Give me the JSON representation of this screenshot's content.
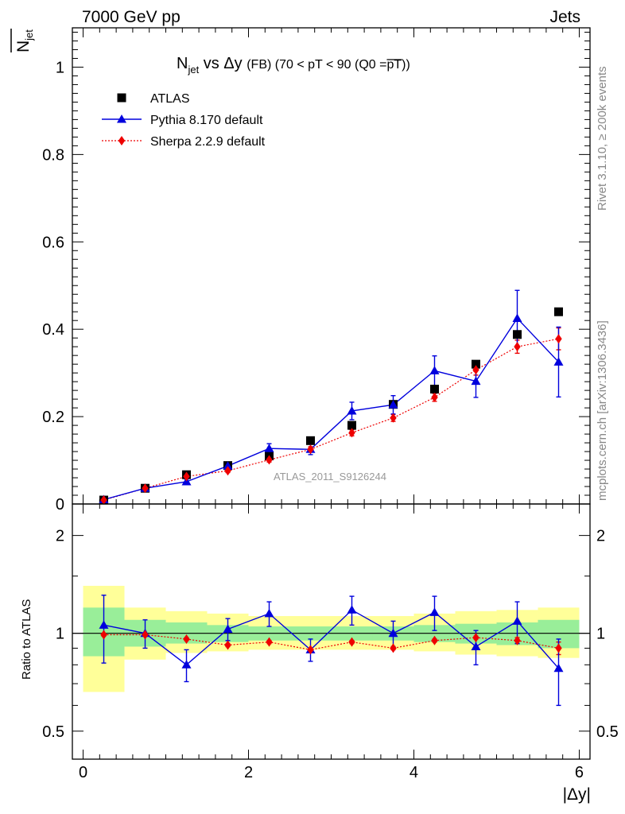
{
  "header": {
    "left": "7000 GeV pp",
    "right": "Jets"
  },
  "title": {
    "prefix": "N",
    "prefix_sub": "jet",
    "middle": " vs Δy ",
    "small": "(FB) (70 < pT <  90 (Q0 =",
    "pt_bar": "pT",
    "close": "))"
  },
  "side_text": {
    "rivet": "Rivet 3.1.10, ≥ 200k events",
    "mcplots": "mcplots.cern.ch [arXiv:1306.3436]"
  },
  "watermark": "ATLAS_2011_S9126244",
  "ylabel_top": {
    "main": "N",
    "sub": "jet"
  },
  "ylabel_bottom": "Ratio to ATLAS",
  "xlabel": "|Δy|",
  "legend": [
    {
      "name": "ATLAS",
      "color": "#000000"
    },
    {
      "name": "Pythia 8.170 default",
      "color": "#0000dd"
    },
    {
      "name": "Sherpa 2.2.9 default",
      "color": "#ee0000"
    }
  ],
  "chart_data": {
    "type": "scatter",
    "x_bins": [
      [
        0,
        0.5
      ],
      [
        0.5,
        1.0
      ],
      [
        1.0,
        1.5
      ],
      [
        1.5,
        2.0
      ],
      [
        2.0,
        2.5
      ],
      [
        2.5,
        3.0
      ],
      [
        3.0,
        3.5
      ],
      [
        3.5,
        4.0
      ],
      [
        4.0,
        4.5
      ],
      [
        4.5,
        5.0
      ],
      [
        5.0,
        5.5
      ],
      [
        5.5,
        6.0
      ]
    ],
    "x": [
      0.25,
      0.75,
      1.25,
      1.75,
      2.25,
      2.75,
      3.25,
      3.75,
      4.25,
      4.75,
      5.25,
      5.75
    ],
    "xlim": [
      -0.13,
      6.13
    ],
    "xticks": [
      0,
      2,
      4,
      6
    ],
    "main": {
      "ylim": [
        0,
        1.09
      ],
      "yticks": [
        0,
        0.2,
        0.4,
        0.6,
        0.8,
        1
      ],
      "ytick_labels": [
        "0",
        "0.2",
        "0.4",
        "0.6",
        "0.8",
        "1"
      ],
      "series": [
        {
          "name": "ATLAS",
          "values": [
            0.009,
            0.036,
            0.067,
            0.088,
            0.11,
            0.145,
            0.18,
            0.228,
            0.263,
            0.32,
            0.388,
            0.44
          ]
        },
        {
          "name": "Pythia 8.170 default",
          "values": [
            0.01,
            0.036,
            0.051,
            0.087,
            0.127,
            0.125,
            0.213,
            0.227,
            0.305,
            0.281,
            0.425,
            0.325
          ],
          "errors": [
            0.002,
            0.003,
            0.006,
            0.007,
            0.011,
            0.012,
            0.02,
            0.021,
            0.034,
            0.037,
            0.064,
            0.08
          ]
        },
        {
          "name": "Sherpa 2.2.9 default",
          "values": [
            0.009,
            0.036,
            0.063,
            0.076,
            0.101,
            0.125,
            0.163,
            0.197,
            0.244,
            0.307,
            0.36,
            0.378
          ],
          "errors": [
            0.001,
            0.002,
            0.003,
            0.004,
            0.005,
            0.006,
            0.007,
            0.008,
            0.009,
            0.012,
            0.015,
            0.025
          ]
        }
      ]
    },
    "ratio": {
      "ylabel": "Ratio to ATLAS",
      "ylim": [
        0.41,
        2.5
      ],
      "yscale": "log",
      "yticks": [
        0.5,
        1,
        2
      ],
      "ytick_labels": [
        "0.5",
        "1",
        "2"
      ],
      "band_stat": [
        [
          0.85,
          1.2
        ],
        [
          0.91,
          1.1
        ],
        [
          0.93,
          1.08
        ],
        [
          0.94,
          1.06
        ],
        [
          0.95,
          1.05
        ],
        [
          0.95,
          1.05
        ],
        [
          0.95,
          1.05
        ],
        [
          0.95,
          1.05
        ],
        [
          0.94,
          1.06
        ],
        [
          0.93,
          1.07
        ],
        [
          0.92,
          1.08
        ],
        [
          0.9,
          1.1
        ]
      ],
      "band_total": [
        [
          0.66,
          1.4
        ],
        [
          0.83,
          1.2
        ],
        [
          0.87,
          1.17
        ],
        [
          0.88,
          1.15
        ],
        [
          0.89,
          1.13
        ],
        [
          0.89,
          1.13
        ],
        [
          0.89,
          1.13
        ],
        [
          0.89,
          1.13
        ],
        [
          0.88,
          1.15
        ],
        [
          0.86,
          1.17
        ],
        [
          0.85,
          1.18
        ],
        [
          0.84,
          1.2
        ]
      ],
      "series": [
        {
          "name": "Pythia 8.170 default",
          "values": [
            1.06,
            1.0,
            0.8,
            1.03,
            1.15,
            0.89,
            1.18,
            1.0,
            1.16,
            0.91,
            1.09,
            0.78
          ],
          "errors": [
            0.25,
            0.1,
            0.09,
            0.08,
            0.1,
            0.07,
            0.12,
            0.09,
            0.14,
            0.11,
            0.16,
            0.18
          ]
        },
        {
          "name": "Sherpa 2.2.9 default",
          "values": [
            0.99,
            0.99,
            0.96,
            0.92,
            0.94,
            0.89,
            0.94,
            0.9,
            0.95,
            0.97,
            0.95,
            0.9
          ],
          "errors": [
            0.01,
            0.01,
            0.01,
            0.01,
            0.01,
            0.01,
            0.01,
            0.01,
            0.01,
            0.01,
            0.02,
            0.04
          ]
        }
      ]
    }
  }
}
